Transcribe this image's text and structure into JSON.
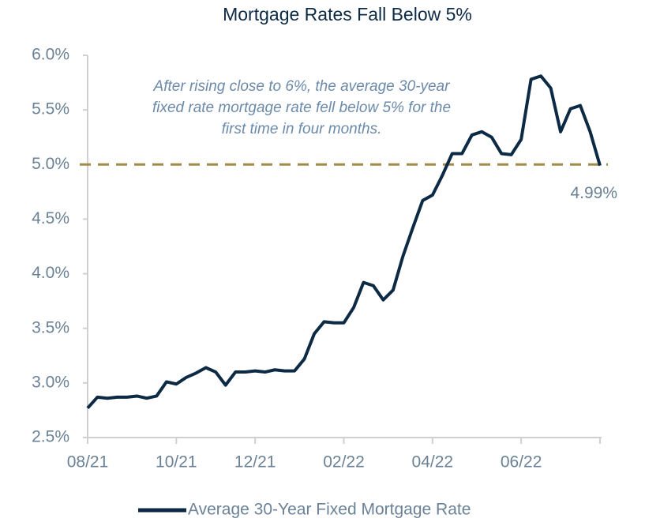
{
  "chart_data": {
    "type": "line",
    "title": "Mortgage Rates Fall Below 5%",
    "annotation": [
      "After rising close to 6%, the average 30-year",
      "fixed rate mortgage rate fell below 5% for the",
      "first time in four months."
    ],
    "categories": [
      "08/21",
      null,
      null,
      null,
      null,
      null,
      null,
      null,
      null,
      "10/21",
      null,
      null,
      null,
      null,
      null,
      null,
      null,
      "12/21",
      null,
      null,
      null,
      null,
      null,
      null,
      null,
      null,
      "02/22",
      null,
      null,
      null,
      null,
      null,
      null,
      null,
      null,
      "04/22",
      null,
      null,
      null,
      null,
      null,
      null,
      null,
      null,
      "06/22",
      null,
      null,
      null,
      null,
      null,
      null,
      null,
      null
    ],
    "series": [
      {
        "name": "Average 30-Year Fixed Mortgage Rate",
        "color": "#0d2a45",
        "values": [
          2.77,
          2.87,
          2.86,
          2.87,
          2.87,
          2.88,
          2.86,
          2.88,
          3.01,
          2.99,
          3.05,
          3.09,
          3.14,
          3.1,
          2.98,
          3.1,
          3.1,
          3.11,
          3.1,
          3.12,
          3.11,
          3.11,
          3.22,
          3.45,
          3.56,
          3.55,
          3.55,
          3.69,
          3.92,
          3.89,
          3.76,
          3.85,
          4.16,
          4.42,
          4.67,
          4.72,
          4.9,
          5.1,
          5.1,
          5.27,
          5.3,
          5.25,
          5.1,
          5.09,
          5.23,
          5.78,
          5.81,
          5.7,
          5.3,
          5.51,
          5.54,
          5.3,
          4.99
        ],
        "value_labels": [
          null,
          null,
          null,
          null,
          null,
          null,
          null,
          null,
          null,
          null,
          null,
          null,
          null,
          null,
          null,
          null,
          null,
          null,
          null,
          null,
          null,
          null,
          null,
          null,
          null,
          null,
          null,
          null,
          null,
          null,
          null,
          null,
          null,
          null,
          null,
          null,
          null,
          null,
          null,
          null,
          null,
          null,
          null,
          null,
          null,
          null,
          null,
          null,
          null,
          null,
          null,
          null,
          "4.99%"
        ]
      }
    ],
    "reference_line": {
      "value": 5.0,
      "color": "#a08c4a"
    },
    "ylim": [
      2.5,
      6.0
    ],
    "yticks": [
      {
        "value": 2.5,
        "label": "2.5%"
      },
      {
        "value": 3.0,
        "label": "3.0%"
      },
      {
        "value": 3.5,
        "label": "3.5%"
      },
      {
        "value": 4.0,
        "label": "4.0%"
      },
      {
        "value": 4.5,
        "label": "4.5%"
      },
      {
        "value": 5.0,
        "label": "5.0%"
      },
      {
        "value": 5.5,
        "label": "5.5%"
      },
      {
        "value": 6.0,
        "label": "6.0%"
      }
    ],
    "grid": false,
    "legend": "bottom"
  }
}
